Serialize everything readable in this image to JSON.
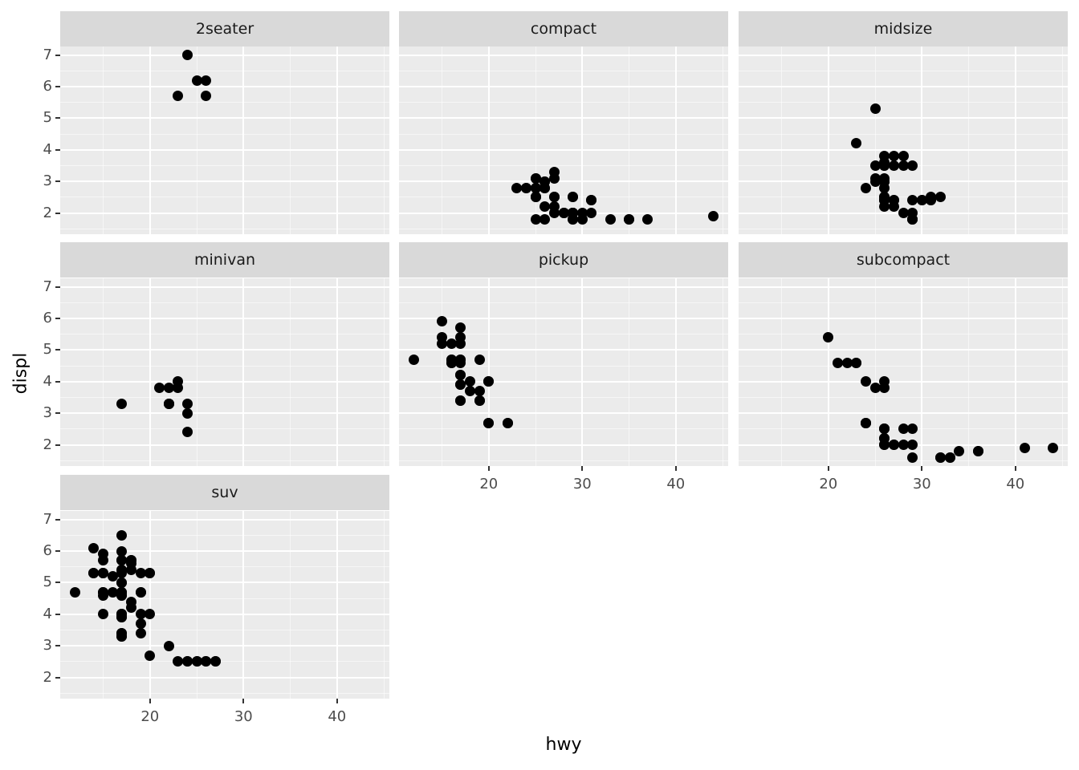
{
  "axis": {
    "x_label": "hwy",
    "y_label": "displ",
    "x_ticks": [
      20,
      30,
      40
    ],
    "y_ticks": [
      2,
      3,
      4,
      5,
      6,
      7
    ],
    "x_minor": [
      15,
      25,
      35,
      45
    ],
    "y_minor": [
      1.5,
      2.5,
      3.5,
      4.5,
      5.5,
      6.5
    ],
    "x_domain": [
      10.4,
      45.6
    ],
    "y_domain": [
      1.33,
      7.27
    ]
  },
  "colors": {
    "panel_bg": "#ebebeb",
    "strip_bg": "#d9d9d9",
    "grid": "#ffffff",
    "point": "#000000",
    "tick_text": "#4d4d4d",
    "title_text": "#000000"
  },
  "chart_data": {
    "type": "scatter",
    "title": "",
    "xlabel": "hwy",
    "ylabel": "displ",
    "facet_by": "class",
    "x_range": [
      10.4,
      45.6
    ],
    "y_range": [
      1.33,
      7.27
    ],
    "grid": true,
    "legend": false,
    "facets": [
      {
        "label": "2seater",
        "points": [
          [
            24,
            7.0
          ],
          [
            25,
            6.2
          ],
          [
            26,
            6.2
          ],
          [
            23,
            5.7
          ],
          [
            26,
            5.7
          ]
        ]
      },
      {
        "label": "compact",
        "points": [
          [
            29,
            1.8
          ],
          [
            29,
            1.8
          ],
          [
            31,
            2.0
          ],
          [
            30,
            2.0
          ],
          [
            26,
            2.8
          ],
          [
            26,
            2.8
          ],
          [
            27,
            3.1
          ],
          [
            26,
            1.8
          ],
          [
            25,
            1.8
          ],
          [
            28,
            2.0
          ],
          [
            27,
            2.0
          ],
          [
            25,
            2.8
          ],
          [
            25,
            2.8
          ],
          [
            25,
            3.1
          ],
          [
            25,
            3.1
          ],
          [
            26,
            2.2
          ],
          [
            27,
            2.2
          ],
          [
            31,
            2.4
          ],
          [
            31,
            2.4
          ],
          [
            26,
            3.0
          ],
          [
            26,
            3.0
          ],
          [
            27,
            3.3
          ],
          [
            30,
            1.8
          ],
          [
            33,
            1.8
          ],
          [
            35,
            1.8
          ],
          [
            35,
            1.8
          ],
          [
            37,
            1.8
          ],
          [
            29,
            2.0
          ],
          [
            29,
            2.0
          ],
          [
            28,
            2.0
          ],
          [
            29,
            2.0
          ],
          [
            24,
            2.8
          ],
          [
            44,
            1.9
          ],
          [
            29,
            2.0
          ],
          [
            29,
            2.0
          ],
          [
            28,
            2.0
          ],
          [
            29,
            2.0
          ],
          [
            29,
            2.5
          ],
          [
            29,
            2.5
          ],
          [
            23,
            2.8
          ],
          [
            24,
            2.8
          ],
          [
            25,
            2.5
          ],
          [
            25,
            2.5
          ],
          [
            27,
            2.5
          ],
          [
            27,
            2.5
          ],
          [
            25,
            2.5
          ],
          [
            29,
            2.0
          ]
        ]
      },
      {
        "label": "midsize",
        "points": [
          [
            23,
            4.2
          ],
          [
            24,
            2.8
          ],
          [
            25,
            3.1
          ],
          [
            26,
            3.1
          ],
          [
            25,
            5.3
          ],
          [
            26,
            3.8
          ],
          [
            27,
            3.8
          ],
          [
            28,
            3.8
          ],
          [
            25,
            3.5
          ],
          [
            26,
            3.5
          ],
          [
            26,
            3.5
          ],
          [
            26,
            3.6
          ],
          [
            27,
            3.5
          ],
          [
            28,
            3.5
          ],
          [
            29,
            3.5
          ],
          [
            25,
            3.0
          ],
          [
            26,
            3.0
          ],
          [
            26,
            3.0
          ],
          [
            26,
            3.0
          ],
          [
            26,
            2.8
          ],
          [
            26,
            2.5
          ],
          [
            26,
            2.5
          ],
          [
            26,
            2.4
          ],
          [
            26,
            2.4
          ],
          [
            26,
            2.4
          ],
          [
            27,
            2.4
          ],
          [
            27,
            2.4
          ],
          [
            26,
            2.2
          ],
          [
            27,
            2.2
          ],
          [
            28,
            2.0
          ],
          [
            29,
            2.4
          ],
          [
            29,
            2.0
          ],
          [
            29,
            1.8
          ],
          [
            29,
            1.8
          ],
          [
            29,
            1.8
          ],
          [
            30,
            2.4
          ],
          [
            30,
            2.4
          ],
          [
            31,
            2.4
          ],
          [
            31,
            2.4
          ],
          [
            31,
            2.5
          ],
          [
            32,
            2.5
          ]
        ]
      },
      {
        "label": "minivan",
        "points": [
          [
            24,
            2.4
          ],
          [
            24,
            3.0
          ],
          [
            17,
            3.3
          ],
          [
            22,
            3.3
          ],
          [
            22,
            3.3
          ],
          [
            22,
            3.3
          ],
          [
            24,
            3.3
          ],
          [
            21,
            3.8
          ],
          [
            22,
            3.8
          ],
          [
            23,
            3.8
          ],
          [
            23,
            4.0
          ]
        ]
      },
      {
        "label": "pickup",
        "points": [
          [
            15,
            5.9
          ],
          [
            17,
            5.7
          ],
          [
            15,
            5.4
          ],
          [
            17,
            5.4
          ],
          [
            15,
            5.2
          ],
          [
            16,
            5.2
          ],
          [
            17,
            5.2
          ],
          [
            12,
            4.7
          ],
          [
            16,
            4.7
          ],
          [
            16,
            4.7
          ],
          [
            16,
            4.6
          ],
          [
            16,
            4.6
          ],
          [
            17,
            4.7
          ],
          [
            17,
            4.7
          ],
          [
            17,
            4.6
          ],
          [
            19,
            4.7
          ],
          [
            17,
            4.2
          ],
          [
            17,
            4.2
          ],
          [
            18,
            4.0
          ],
          [
            20,
            4.0
          ],
          [
            20,
            4.0
          ],
          [
            17,
            3.9
          ],
          [
            17,
            3.9
          ],
          [
            18,
            3.7
          ],
          [
            19,
            3.7
          ],
          [
            17,
            3.4
          ],
          [
            17,
            3.4
          ],
          [
            19,
            3.4
          ],
          [
            19,
            3.4
          ],
          [
            20,
            2.7
          ],
          [
            20,
            2.7
          ],
          [
            22,
            2.7
          ],
          [
            22,
            2.7
          ]
        ]
      },
      {
        "label": "subcompact",
        "points": [
          [
            20,
            5.4
          ],
          [
            21,
            4.6
          ],
          [
            22,
            4.6
          ],
          [
            23,
            4.6
          ],
          [
            23,
            4.6
          ],
          [
            24,
            4.0
          ],
          [
            26,
            4.0
          ],
          [
            25,
            3.8
          ],
          [
            26,
            3.8
          ],
          [
            29,
            1.6
          ],
          [
            32,
            1.6
          ],
          [
            32,
            1.6
          ],
          [
            33,
            1.6
          ],
          [
            33,
            1.6
          ],
          [
            34,
            1.8
          ],
          [
            36,
            1.8
          ],
          [
            36,
            1.8
          ],
          [
            29,
            2.0
          ],
          [
            26,
            2.0
          ],
          [
            26,
            2.0
          ],
          [
            27,
            2.0
          ],
          [
            27,
            2.0
          ],
          [
            24,
            2.7
          ],
          [
            24,
            2.7
          ],
          [
            24,
            2.7
          ],
          [
            26,
            2.5
          ],
          [
            28,
            2.5
          ],
          [
            29,
            2.5
          ],
          [
            28,
            2.0
          ],
          [
            41,
            1.9
          ],
          [
            44,
            1.9
          ],
          [
            26,
            2.2
          ],
          [
            26,
            2.2
          ],
          [
            26,
            2.5
          ],
          [
            26,
            2.5
          ]
        ]
      },
      {
        "label": "suv",
        "points": [
          [
            17,
            6.5
          ],
          [
            14,
            6.1
          ],
          [
            15,
            5.9
          ],
          [
            17,
            6.0
          ],
          [
            15,
            5.7
          ],
          [
            17,
            5.7
          ],
          [
            17,
            5.7
          ],
          [
            18,
            5.7
          ],
          [
            18,
            5.7
          ],
          [
            18,
            5.6
          ],
          [
            18,
            5.4
          ],
          [
            14,
            5.3
          ],
          [
            14,
            5.3
          ],
          [
            15,
            5.3
          ],
          [
            15,
            5.3
          ],
          [
            16,
            5.2
          ],
          [
            17,
            5.3
          ],
          [
            17,
            5.4
          ],
          [
            19,
            5.3
          ],
          [
            20,
            5.3
          ],
          [
            20,
            5.3
          ],
          [
            17,
            5.0
          ],
          [
            17,
            5.0
          ],
          [
            12,
            4.7
          ],
          [
            15,
            4.7
          ],
          [
            15,
            4.7
          ],
          [
            15,
            4.6
          ],
          [
            16,
            4.7
          ],
          [
            17,
            4.7
          ],
          [
            17,
            4.7
          ],
          [
            17,
            4.7
          ],
          [
            17,
            4.6
          ],
          [
            17,
            4.6
          ],
          [
            19,
            4.7
          ],
          [
            19,
            4.7
          ],
          [
            18,
            4.4
          ],
          [
            18,
            4.2
          ],
          [
            15,
            4.0
          ],
          [
            17,
            4.0
          ],
          [
            17,
            4.0
          ],
          [
            17,
            4.0
          ],
          [
            19,
            4.0
          ],
          [
            20,
            4.0
          ],
          [
            17,
            3.9
          ],
          [
            17,
            3.9
          ],
          [
            19,
            3.7
          ],
          [
            17,
            3.4
          ],
          [
            17,
            3.4
          ],
          [
            17,
            3.3
          ],
          [
            17,
            3.3
          ],
          [
            19,
            3.4
          ],
          [
            20,
            2.7
          ],
          [
            22,
            3.0
          ],
          [
            23,
            2.5
          ],
          [
            24,
            2.5
          ],
          [
            24,
            2.5
          ],
          [
            25,
            2.5
          ],
          [
            25,
            2.5
          ],
          [
            26,
            2.5
          ],
          [
            26,
            2.5
          ],
          [
            27,
            2.5
          ],
          [
            27,
            2.5
          ]
        ]
      }
    ]
  }
}
